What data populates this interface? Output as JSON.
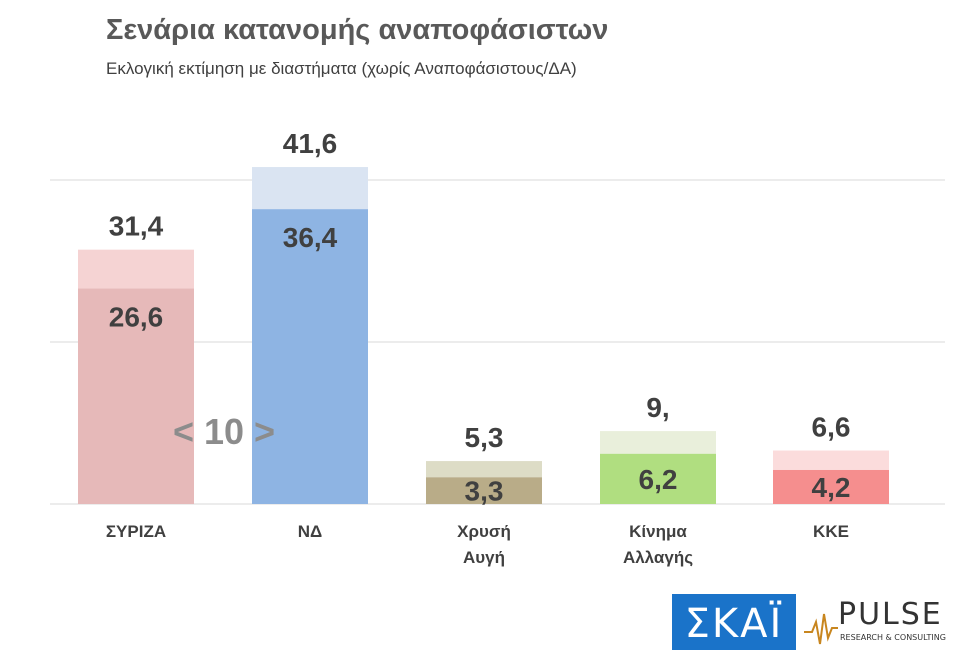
{
  "header": {
    "title": "Σενάρια κατανομής αναποφάσιστων",
    "subtitle": "Εκλογική εκτίμηση με διαστήματα (χωρίς Αναποφάσιστους/ΔΑ)"
  },
  "annotation": "< 10 >",
  "logos": {
    "skai": "ΣΚΑΪ",
    "pulse": "PULSE",
    "pulse_tagline": "RESEARCH & CONSULTING"
  },
  "chart_data": {
    "type": "bar",
    "categories": [
      "ΣΥΡΙΖΑ",
      "ΝΔ",
      "Χρυσή Αυγή",
      "Κίνημα Αλλαγής",
      "ΚΚΕ"
    ],
    "category_lines": [
      [
        "ΣΥΡΙΖΑ"
      ],
      [
        "ΝΔ"
      ],
      [
        "Χρυσή",
        "Αυγή"
      ],
      [
        "Κίνημα",
        "Αλλαγής"
      ],
      [
        "ΚΚΕ"
      ]
    ],
    "series": [
      {
        "values": [
          26.6,
          36.4,
          3.3,
          6.2,
          4.2
        ]
      },
      {
        "values": [
          31.4,
          41.6,
          5.3,
          9.0,
          6.6
        ]
      }
    ],
    "low_labels": [
      "26,6",
      "36,4",
      "3,3",
      "6,2",
      "4,2"
    ],
    "high_labels": [
      "31,4",
      "41,6",
      "5,3",
      "9,",
      "6,6"
    ],
    "colors": {
      "low": [
        "#e6b9b9",
        "#8eb4e3",
        "#b9ac88",
        "#b0de80",
        "#f58e8e"
      ],
      "high": [
        "#f5d3d3",
        "#dae4f2",
        "#dddcc6",
        "#e9efdb",
        "#fbdcdc"
      ]
    },
    "ylim": [
      0,
      45
    ],
    "grid": true
  }
}
